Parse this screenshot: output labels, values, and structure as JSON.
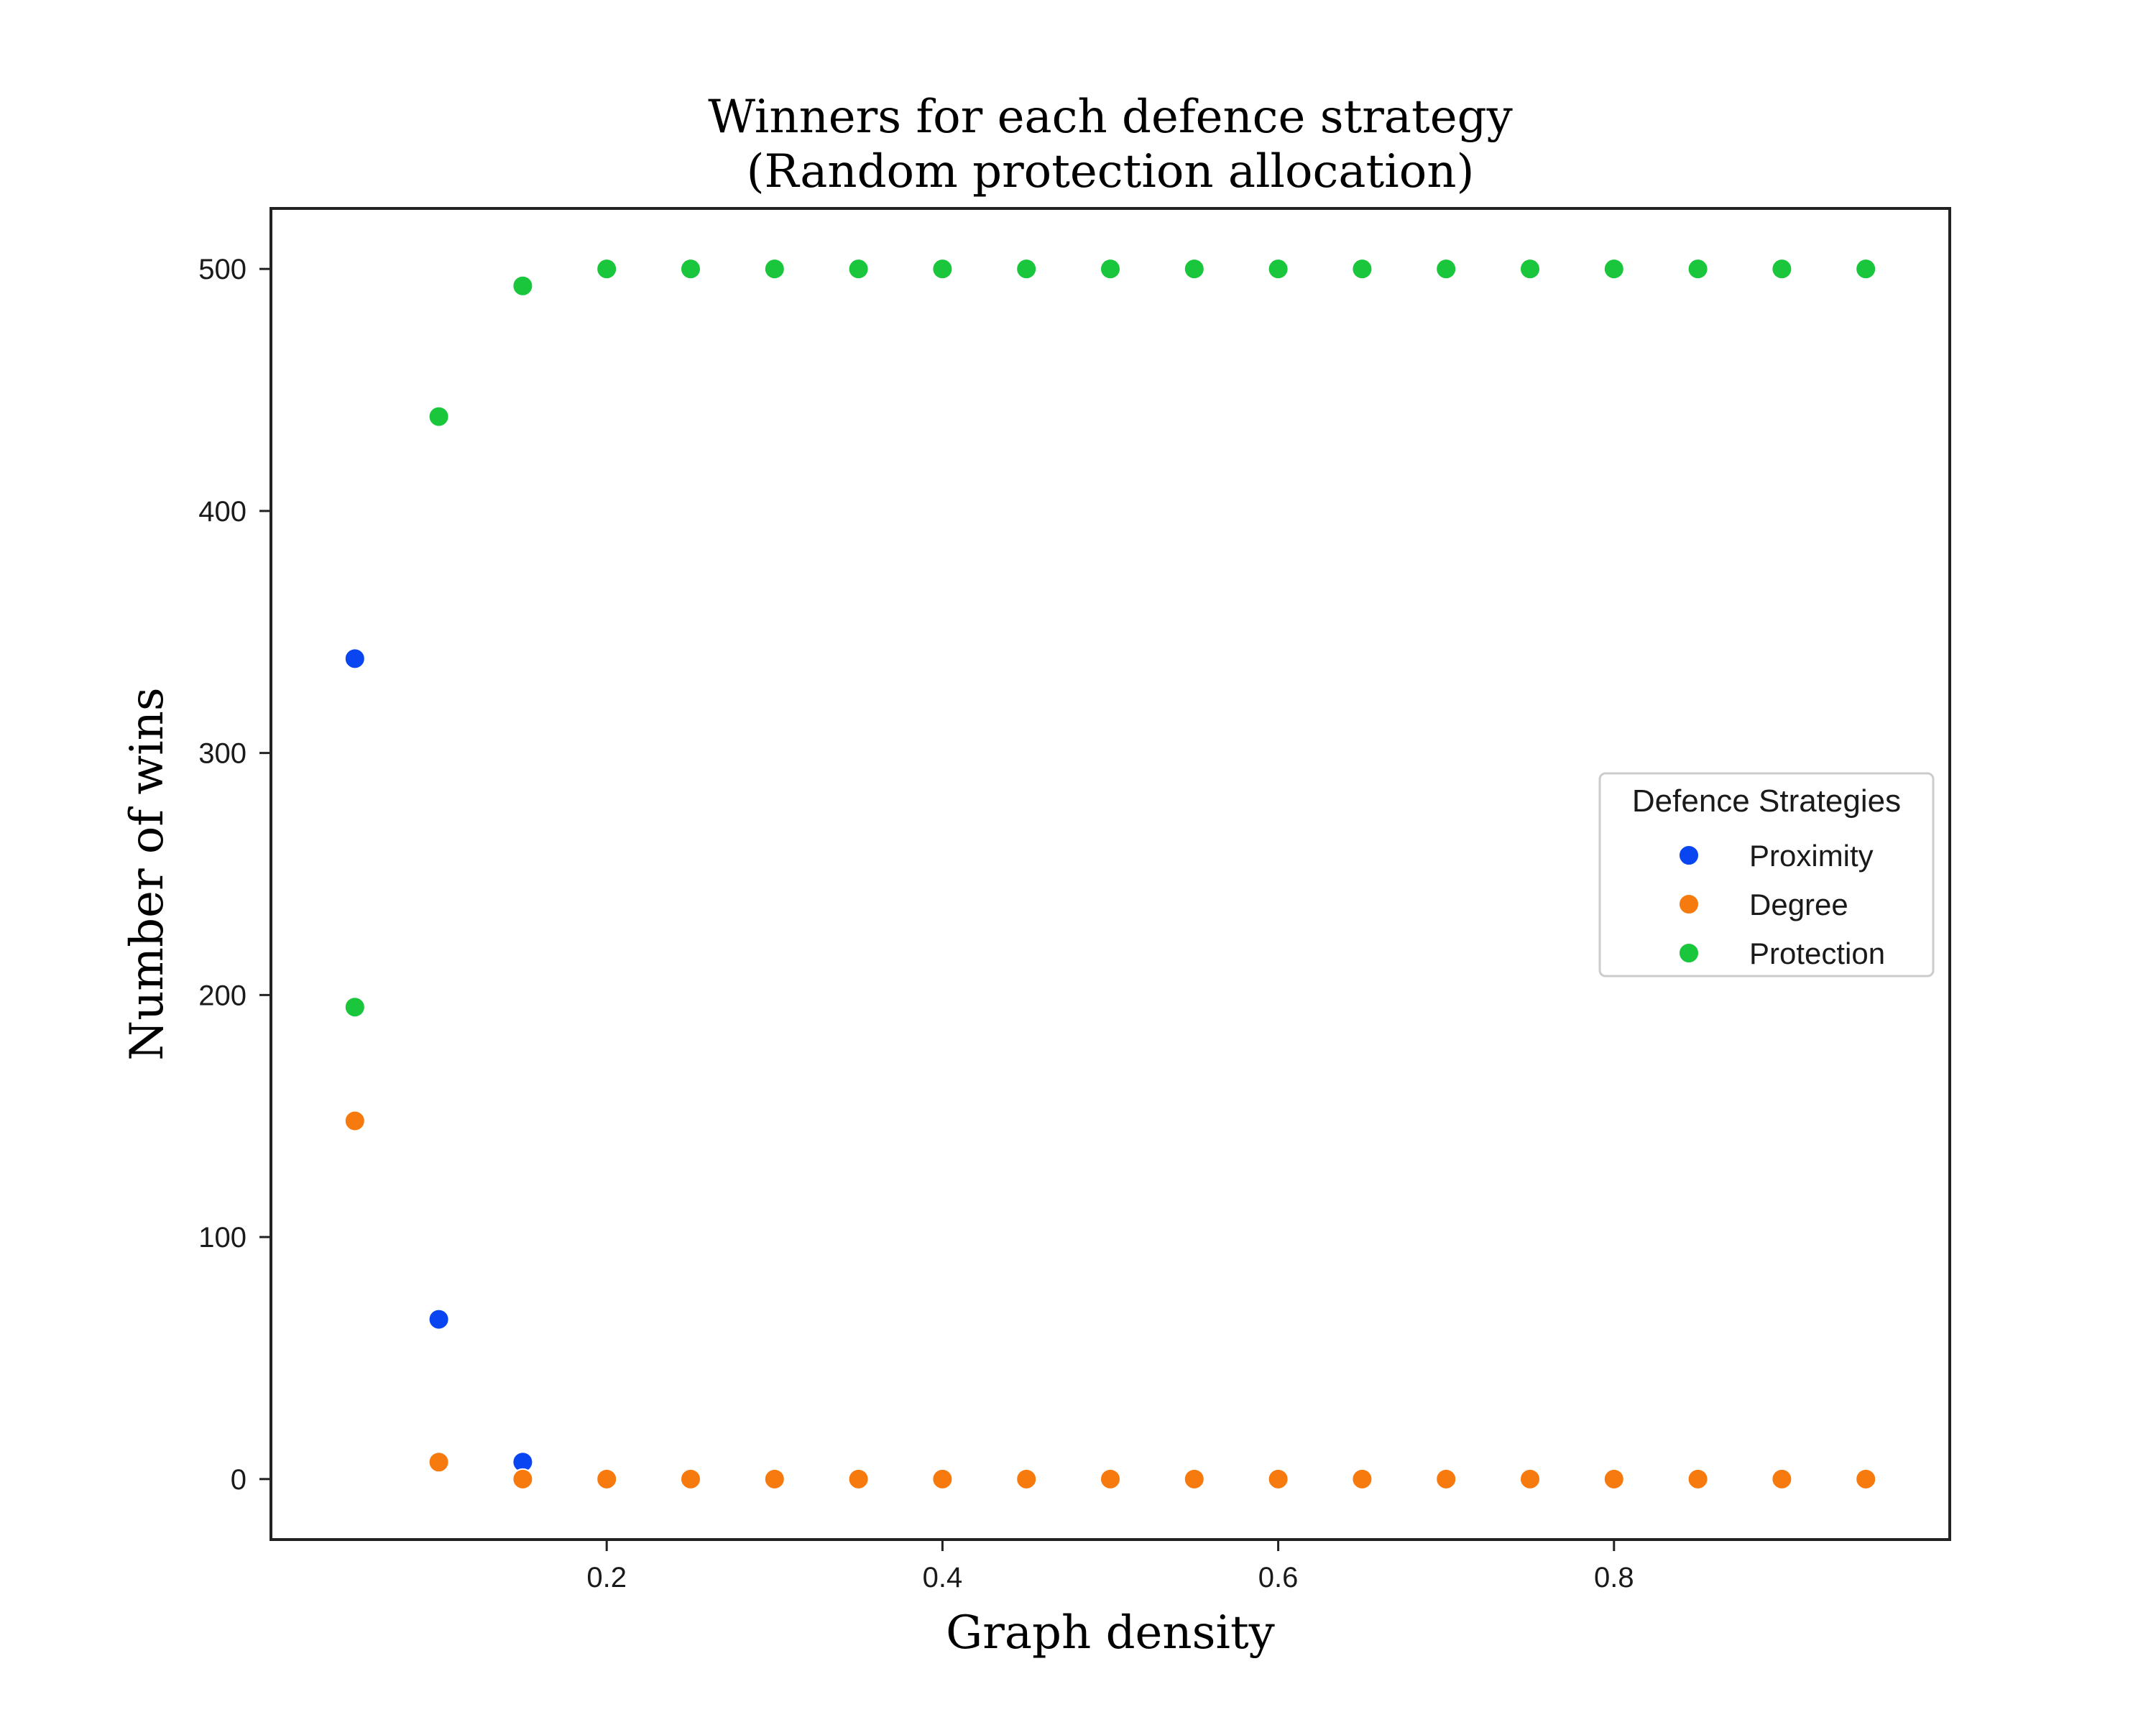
{
  "chart_data": {
    "type": "scatter",
    "title": "Winners for each defence strategy",
    "subtitle": "(Random protection allocation)",
    "xlabel": "Graph density",
    "ylabel": "Number of wins",
    "xlim": [
      0.0,
      1.0
    ],
    "ylim": [
      -25,
      525
    ],
    "xticks": [
      0.2,
      0.4,
      0.6,
      0.8
    ],
    "xtick_labels": [
      "0.2",
      "0.4",
      "0.6",
      "0.8"
    ],
    "yticks": [
      0,
      100,
      200,
      300,
      400,
      500
    ],
    "ytick_labels": [
      "0",
      "100",
      "200",
      "300",
      "400",
      "500"
    ],
    "grid": false,
    "legend": {
      "title": "Defence Strategies",
      "placement": "center-right"
    },
    "overlap_color": "#8c6163",
    "series": [
      {
        "name": "Proximity",
        "color": "#0a45f2",
        "x": [
          0.05,
          0.1,
          0.15,
          0.2,
          0.25,
          0.3,
          0.35,
          0.4,
          0.45,
          0.5,
          0.55,
          0.6,
          0.65,
          0.7,
          0.75,
          0.8,
          0.85,
          0.9,
          0.95
        ],
        "y": [
          339,
          66,
          7,
          0,
          0,
          0,
          0,
          0,
          0,
          0,
          0,
          0,
          0,
          0,
          0,
          0,
          0,
          0,
          0
        ]
      },
      {
        "name": "Degree",
        "color": "#f77a0f",
        "x": [
          0.05,
          0.1,
          0.15,
          0.2,
          0.25,
          0.3,
          0.35,
          0.4,
          0.45,
          0.5,
          0.55,
          0.6,
          0.65,
          0.7,
          0.75,
          0.8,
          0.85,
          0.9,
          0.95
        ],
        "y": [
          148,
          7,
          0,
          0,
          0,
          0,
          0,
          0,
          0,
          0,
          0,
          0,
          0,
          0,
          0,
          0,
          0,
          0,
          0
        ]
      },
      {
        "name": "Protection",
        "color": "#1ac63c",
        "x": [
          0.05,
          0.1,
          0.15,
          0.2,
          0.25,
          0.3,
          0.35,
          0.4,
          0.45,
          0.5,
          0.55,
          0.6,
          0.65,
          0.7,
          0.75,
          0.8,
          0.85,
          0.9,
          0.95
        ],
        "y": [
          195,
          439,
          493,
          500,
          500,
          500,
          500,
          500,
          500,
          500,
          500,
          500,
          500,
          500,
          500,
          500,
          500,
          500,
          500
        ]
      }
    ]
  }
}
